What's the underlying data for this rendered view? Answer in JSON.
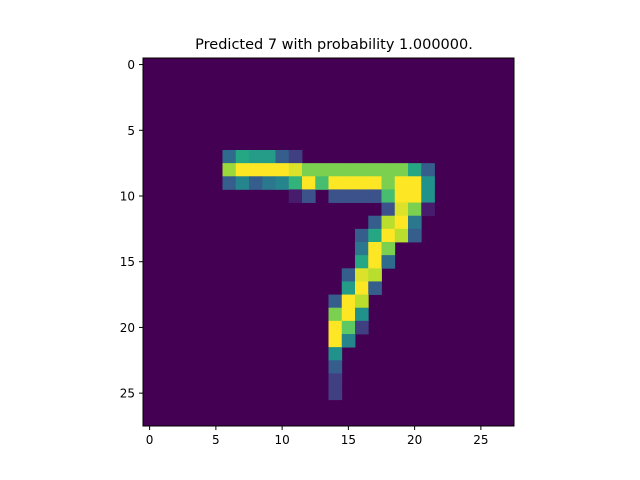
{
  "chart_data": {
    "type": "heatmap",
    "title": "Predicted 7 with probability 1.000000.",
    "xlabel": "",
    "ylabel": "",
    "grid": false,
    "colormap": "viridis",
    "rows": 28,
    "cols": 28,
    "xlim": [
      -0.5,
      27.5
    ],
    "ylim": [
      27.5,
      -0.5
    ],
    "xticks": [
      0,
      5,
      10,
      15,
      20,
      25
    ],
    "yticks": [
      0,
      5,
      10,
      15,
      20,
      25
    ],
    "xtick_labels": [
      "0",
      "5",
      "10",
      "15",
      "20",
      "25"
    ],
    "ytick_labels": [
      "0",
      "5",
      "10",
      "15",
      "20",
      "25"
    ],
    "value_range": [
      0,
      1
    ],
    "cells": [
      {
        "r": 7,
        "c": 6,
        "v": 0.35
      },
      {
        "r": 7,
        "c": 7,
        "v": 0.6
      },
      {
        "r": 7,
        "c": 8,
        "v": 0.55
      },
      {
        "r": 7,
        "c": 9,
        "v": 0.55
      },
      {
        "r": 7,
        "c": 10,
        "v": 0.3
      },
      {
        "r": 7,
        "c": 11,
        "v": 0.2
      },
      {
        "r": 8,
        "c": 6,
        "v": 0.85
      },
      {
        "r": 8,
        "c": 7,
        "v": 1.0
      },
      {
        "r": 8,
        "c": 8,
        "v": 1.0
      },
      {
        "r": 8,
        "c": 9,
        "v": 1.0
      },
      {
        "r": 8,
        "c": 10,
        "v": 1.0
      },
      {
        "r": 8,
        "c": 11,
        "v": 0.95
      },
      {
        "r": 8,
        "c": 12,
        "v": 0.8
      },
      {
        "r": 8,
        "c": 13,
        "v": 0.8
      },
      {
        "r": 8,
        "c": 14,
        "v": 0.8
      },
      {
        "r": 8,
        "c": 15,
        "v": 0.8
      },
      {
        "r": 8,
        "c": 16,
        "v": 0.8
      },
      {
        "r": 8,
        "c": 17,
        "v": 0.8
      },
      {
        "r": 8,
        "c": 18,
        "v": 0.8
      },
      {
        "r": 8,
        "c": 19,
        "v": 0.8
      },
      {
        "r": 8,
        "c": 20,
        "v": 0.6
      },
      {
        "r": 8,
        "c": 21,
        "v": 0.3
      },
      {
        "r": 9,
        "c": 6,
        "v": 0.3
      },
      {
        "r": 9,
        "c": 7,
        "v": 0.45
      },
      {
        "r": 9,
        "c": 8,
        "v": 0.3
      },
      {
        "r": 9,
        "c": 9,
        "v": 0.4
      },
      {
        "r": 9,
        "c": 10,
        "v": 0.45
      },
      {
        "r": 9,
        "c": 11,
        "v": 0.65
      },
      {
        "r": 9,
        "c": 12,
        "v": 1.0
      },
      {
        "r": 9,
        "c": 13,
        "v": 0.7
      },
      {
        "r": 9,
        "c": 14,
        "v": 1.0
      },
      {
        "r": 9,
        "c": 15,
        "v": 1.0
      },
      {
        "r": 9,
        "c": 16,
        "v": 1.0
      },
      {
        "r": 9,
        "c": 17,
        "v": 1.0
      },
      {
        "r": 9,
        "c": 18,
        "v": 0.8
      },
      {
        "r": 9,
        "c": 19,
        "v": 1.0
      },
      {
        "r": 9,
        "c": 20,
        "v": 1.0
      },
      {
        "r": 9,
        "c": 21,
        "v": 0.5
      },
      {
        "r": 10,
        "c": 11,
        "v": 0.1
      },
      {
        "r": 10,
        "c": 12,
        "v": 0.25
      },
      {
        "r": 10,
        "c": 14,
        "v": 0.25
      },
      {
        "r": 10,
        "c": 15,
        "v": 0.25
      },
      {
        "r": 10,
        "c": 16,
        "v": 0.25
      },
      {
        "r": 10,
        "c": 17,
        "v": 0.25
      },
      {
        "r": 10,
        "c": 18,
        "v": 0.7
      },
      {
        "r": 10,
        "c": 19,
        "v": 1.0
      },
      {
        "r": 10,
        "c": 20,
        "v": 1.0
      },
      {
        "r": 10,
        "c": 21,
        "v": 0.5
      },
      {
        "r": 11,
        "c": 18,
        "v": 0.25
      },
      {
        "r": 11,
        "c": 19,
        "v": 0.95
      },
      {
        "r": 11,
        "c": 20,
        "v": 0.8
      },
      {
        "r": 11,
        "c": 21,
        "v": 0.1
      },
      {
        "r": 12,
        "c": 17,
        "v": 0.3
      },
      {
        "r": 12,
        "c": 18,
        "v": 0.9
      },
      {
        "r": 12,
        "c": 19,
        "v": 1.0
      },
      {
        "r": 12,
        "c": 20,
        "v": 0.4
      },
      {
        "r": 13,
        "c": 16,
        "v": 0.3
      },
      {
        "r": 13,
        "c": 17,
        "v": 0.6
      },
      {
        "r": 13,
        "c": 18,
        "v": 1.0
      },
      {
        "r": 13,
        "c": 19,
        "v": 0.9
      },
      {
        "r": 13,
        "c": 20,
        "v": 0.3
      },
      {
        "r": 14,
        "c": 16,
        "v": 0.4
      },
      {
        "r": 14,
        "c": 17,
        "v": 1.0
      },
      {
        "r": 14,
        "c": 18,
        "v": 0.8
      },
      {
        "r": 15,
        "c": 16,
        "v": 0.6
      },
      {
        "r": 15,
        "c": 17,
        "v": 1.0
      },
      {
        "r": 15,
        "c": 18,
        "v": 0.35
      },
      {
        "r": 16,
        "c": 15,
        "v": 0.3
      },
      {
        "r": 16,
        "c": 16,
        "v": 0.95
      },
      {
        "r": 16,
        "c": 17,
        "v": 0.9
      },
      {
        "r": 17,
        "c": 15,
        "v": 0.55
      },
      {
        "r": 17,
        "c": 16,
        "v": 1.0
      },
      {
        "r": 17,
        "c": 17,
        "v": 0.3
      },
      {
        "r": 18,
        "c": 14,
        "v": 0.3
      },
      {
        "r": 18,
        "c": 15,
        "v": 1.0
      },
      {
        "r": 18,
        "c": 16,
        "v": 0.9
      },
      {
        "r": 19,
        "c": 14,
        "v": 0.8
      },
      {
        "r": 19,
        "c": 15,
        "v": 1.0
      },
      {
        "r": 19,
        "c": 16,
        "v": 0.5
      },
      {
        "r": 20,
        "c": 14,
        "v": 1.0
      },
      {
        "r": 20,
        "c": 15,
        "v": 0.75
      },
      {
        "r": 20,
        "c": 16,
        "v": 0.2
      },
      {
        "r": 21,
        "c": 14,
        "v": 1.0
      },
      {
        "r": 21,
        "c": 15,
        "v": 0.45
      },
      {
        "r": 22,
        "c": 14,
        "v": 0.5
      },
      {
        "r": 23,
        "c": 14,
        "v": 0.3
      },
      {
        "r": 24,
        "c": 14,
        "v": 0.2
      },
      {
        "r": 25,
        "c": 14,
        "v": 0.2
      }
    ]
  }
}
